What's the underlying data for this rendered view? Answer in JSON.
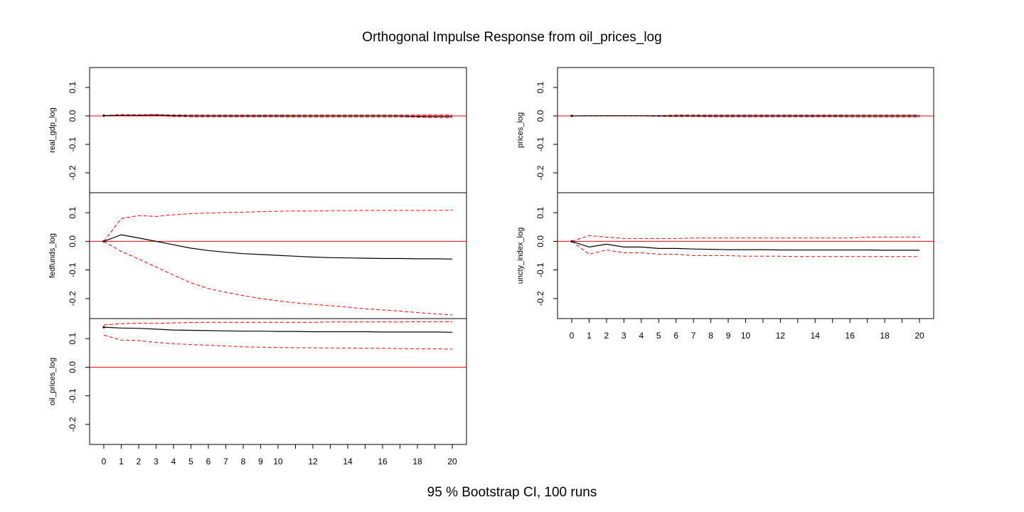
{
  "title": "Orthogonal Impulse Response from oil_prices_log",
  "footer": "95 % Bootstrap CI,  100 runs",
  "colors": {
    "response": "#000000",
    "ci": "#ff0000",
    "zero_line": "#ff0000",
    "frame": "#000000",
    "background": "#ffffff"
  },
  "chart_data": [
    {
      "type": "line",
      "name": "real_gdp_log",
      "ylabel": "real_gdp_log",
      "ylim": [
        -0.27,
        0.17
      ],
      "yticks": [
        -0.2,
        -0.1,
        0.0,
        0.1
      ],
      "ytick_labels": [
        "-0.2",
        "-0.1",
        "0.0",
        "0.1"
      ],
      "x": [
        0,
        1,
        2,
        3,
        4,
        5,
        6,
        7,
        8,
        9,
        10,
        11,
        12,
        13,
        14,
        15,
        16,
        17,
        18,
        19,
        20
      ],
      "response": [
        0.001,
        0.002,
        0.002,
        0.003,
        0.001,
        0.0,
        0.0,
        0.0,
        0.0,
        0.0,
        0.0,
        0.0,
        0.0,
        0.0,
        0.0,
        0.0,
        0.0,
        0.0,
        -0.002,
        -0.002,
        -0.002
      ],
      "upper": [
        0.001,
        0.005,
        0.004,
        0.005,
        0.003,
        0.003,
        0.003,
        0.003,
        0.003,
        0.003,
        0.003,
        0.003,
        0.003,
        0.003,
        0.003,
        0.003,
        0.003,
        0.003,
        0.003,
        0.003,
        0.003
      ],
      "lower": [
        0.001,
        0.0,
        0.0,
        0.001,
        -0.002,
        -0.003,
        -0.003,
        -0.003,
        -0.003,
        -0.003,
        -0.003,
        -0.004,
        -0.004,
        -0.004,
        -0.004,
        -0.004,
        -0.004,
        -0.004,
        -0.005,
        -0.006,
        -0.007
      ]
    },
    {
      "type": "line",
      "name": "fedfunds_log",
      "ylabel": "fedfunds_log",
      "ylim": [
        -0.27,
        0.17
      ],
      "yticks": [
        -0.2,
        -0.1,
        0.0,
        0.1
      ],
      "ytick_labels": [
        "-0.2",
        "-0.1",
        "0.0",
        "0.1"
      ],
      "x": [
        0,
        1,
        2,
        3,
        4,
        5,
        6,
        7,
        8,
        9,
        10,
        11,
        12,
        13,
        14,
        15,
        16,
        17,
        18,
        19,
        20
      ],
      "response": [
        0.0,
        0.023,
        0.012,
        0.0,
        -0.012,
        -0.024,
        -0.032,
        -0.038,
        -0.043,
        -0.046,
        -0.049,
        -0.052,
        -0.055,
        -0.057,
        -0.058,
        -0.059,
        -0.06,
        -0.06,
        -0.061,
        -0.061,
        -0.062
      ],
      "upper": [
        0.0,
        0.08,
        0.09,
        0.087,
        0.093,
        0.097,
        0.099,
        0.101,
        0.102,
        0.104,
        0.105,
        0.106,
        0.106,
        0.107,
        0.107,
        0.108,
        0.108,
        0.108,
        0.108,
        0.108,
        0.109
      ],
      "lower": [
        0.0,
        -0.035,
        -0.062,
        -0.09,
        -0.118,
        -0.145,
        -0.165,
        -0.178,
        -0.19,
        -0.2,
        -0.208,
        -0.215,
        -0.22,
        -0.225,
        -0.23,
        -0.236,
        -0.24,
        -0.244,
        -0.249,
        -0.253,
        -0.257
      ]
    },
    {
      "type": "line",
      "name": "oil_prices_log",
      "ylabel": "oil_prices_log",
      "ylim": [
        -0.27,
        0.17
      ],
      "yticks": [
        -0.2,
        -0.1,
        0.0,
        0.1
      ],
      "ytick_labels": [
        "-0.2",
        "-0.1",
        "0.0",
        "0.1"
      ],
      "x": [
        0,
        1,
        2,
        3,
        4,
        5,
        6,
        7,
        8,
        9,
        10,
        11,
        12,
        13,
        14,
        15,
        16,
        17,
        18,
        19,
        20
      ],
      "response": [
        0.14,
        0.137,
        0.136,
        0.133,
        0.13,
        0.129,
        0.128,
        0.127,
        0.126,
        0.126,
        0.125,
        0.125,
        0.124,
        0.124,
        0.124,
        0.124,
        0.123,
        0.123,
        0.123,
        0.123,
        0.122
      ],
      "upper": [
        0.148,
        0.152,
        0.154,
        0.153,
        0.155,
        0.156,
        0.157,
        0.157,
        0.157,
        0.157,
        0.157,
        0.157,
        0.157,
        0.158,
        0.158,
        0.158,
        0.158,
        0.158,
        0.159,
        0.159,
        0.159
      ],
      "lower": [
        0.112,
        0.095,
        0.093,
        0.087,
        0.082,
        0.079,
        0.077,
        0.074,
        0.071,
        0.07,
        0.069,
        0.068,
        0.068,
        0.067,
        0.067,
        0.066,
        0.066,
        0.065,
        0.064,
        0.064,
        0.063
      ],
      "xticks": [
        0,
        1,
        2,
        3,
        4,
        5,
        6,
        7,
        8,
        9,
        10,
        11,
        12,
        13,
        14,
        15,
        16,
        17,
        18,
        19,
        20
      ],
      "xtick_labels": [
        "0",
        "1",
        "2",
        "3",
        "4",
        "5",
        "6",
        "7",
        "8",
        "9",
        "10",
        "",
        "12",
        "",
        "14",
        "",
        "16",
        "",
        "18",
        "",
        "20"
      ]
    },
    {
      "type": "line",
      "name": "prices_log",
      "ylabel": "prices_log",
      "ylim": [
        -0.27,
        0.17
      ],
      "yticks": [
        -0.2,
        -0.1,
        0.0,
        0.1
      ],
      "ytick_labels": [
        "-0.2",
        "-0.1",
        "0.0",
        "0.1"
      ],
      "x": [
        0,
        1,
        2,
        3,
        4,
        5,
        6,
        7,
        8,
        9,
        10,
        11,
        12,
        13,
        14,
        15,
        16,
        17,
        18,
        19,
        20
      ],
      "response": [
        0.0,
        0.0005,
        0.0005,
        0.0005,
        0.0005,
        0.0,
        0.0,
        0.0,
        0.0,
        0.0,
        0.0,
        0.0,
        0.0,
        0.0,
        0.0,
        0.0,
        0.0,
        0.0,
        0.0,
        0.0,
        0.0
      ],
      "upper": [
        0.0,
        0.001,
        0.001,
        0.001,
        0.001,
        0.001,
        0.003,
        0.003,
        0.003,
        0.003,
        0.003,
        0.003,
        0.003,
        0.003,
        0.003,
        0.003,
        0.003,
        0.003,
        0.003,
        0.003,
        0.003
      ],
      "lower": [
        0.0,
        0.0,
        0.0,
        0.0,
        0.0,
        -0.001,
        -0.002,
        -0.002,
        -0.003,
        -0.003,
        -0.003,
        -0.003,
        -0.003,
        -0.003,
        -0.003,
        -0.003,
        -0.004,
        -0.004,
        -0.004,
        -0.004,
        -0.004
      ]
    },
    {
      "type": "line",
      "name": "uncty_index_log",
      "ylabel": "uncty_index_log",
      "ylim": [
        -0.27,
        0.17
      ],
      "yticks": [
        -0.2,
        -0.1,
        0.0,
        0.1
      ],
      "ytick_labels": [
        "-0.2",
        "-0.1",
        "0.0",
        "0.1"
      ],
      "x": [
        0,
        1,
        2,
        3,
        4,
        5,
        6,
        7,
        8,
        9,
        10,
        11,
        12,
        13,
        14,
        15,
        16,
        17,
        18,
        19,
        20
      ],
      "response": [
        0.0,
        -0.02,
        -0.01,
        -0.02,
        -0.02,
        -0.025,
        -0.025,
        -0.027,
        -0.028,
        -0.029,
        -0.029,
        -0.029,
        -0.03,
        -0.03,
        -0.03,
        -0.03,
        -0.03,
        -0.03,
        -0.031,
        -0.031,
        -0.031
      ],
      "upper": [
        0.0,
        0.02,
        0.015,
        0.01,
        0.01,
        0.01,
        0.01,
        0.012,
        0.012,
        0.012,
        0.012,
        0.012,
        0.012,
        0.012,
        0.012,
        0.012,
        0.012,
        0.015,
        0.015,
        0.015,
        0.015
      ],
      "lower": [
        0.0,
        -0.045,
        -0.03,
        -0.04,
        -0.04,
        -0.045,
        -0.045,
        -0.05,
        -0.05,
        -0.05,
        -0.052,
        -0.052,
        -0.052,
        -0.053,
        -0.053,
        -0.053,
        -0.053,
        -0.053,
        -0.053,
        -0.053,
        -0.053
      ],
      "xticks": [
        0,
        1,
        2,
        3,
        4,
        5,
        6,
        7,
        8,
        9,
        10,
        11,
        12,
        13,
        14,
        15,
        16,
        17,
        18,
        19,
        20
      ],
      "xtick_labels": [
        "0",
        "1",
        "2",
        "3",
        "4",
        "5",
        "6",
        "7",
        "8",
        "9",
        "10",
        "",
        "12",
        "",
        "14",
        "",
        "16",
        "",
        "18",
        "",
        "20"
      ]
    }
  ]
}
